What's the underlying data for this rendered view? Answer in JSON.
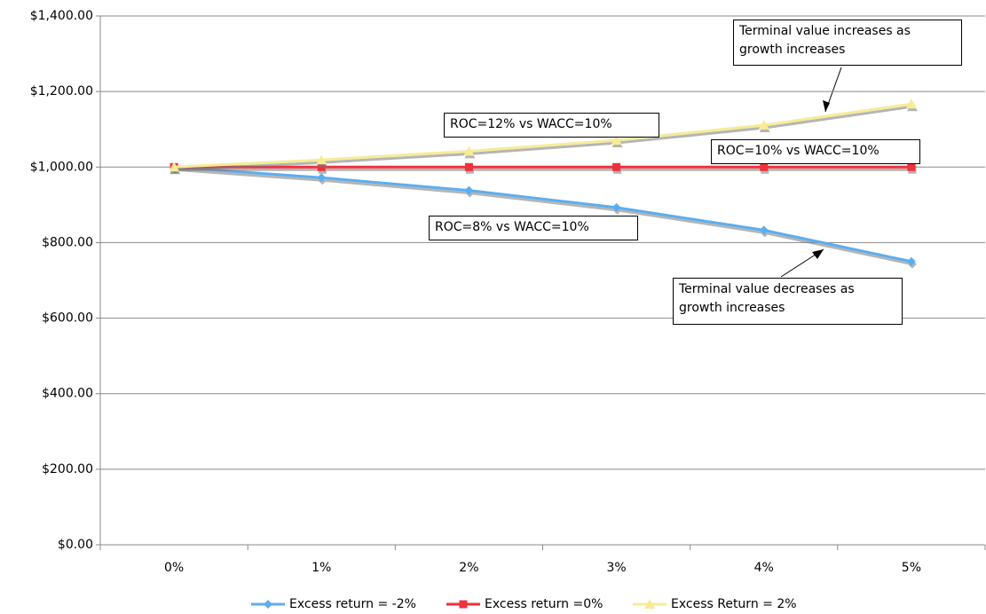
{
  "chart_data": {
    "type": "line",
    "categories": [
      "0%",
      "1%",
      "2%",
      "3%",
      "4%",
      "5%"
    ],
    "series": [
      {
        "name": "Excess return = -2%",
        "color": "#5aaef0",
        "marker": "diamond",
        "values": [
          1000,
          972,
          938,
          893,
          833,
          750
        ]
      },
      {
        "name": "Excess return =0%",
        "color": "#f0303c",
        "marker": "square",
        "values": [
          1000,
          1000,
          1000,
          1000,
          1000,
          1000
        ]
      },
      {
        "name": "Excess Return = 2%",
        "color": "#f6ec96",
        "marker": "triangle",
        "values": [
          1000,
          1019,
          1042,
          1071,
          1111,
          1167
        ]
      }
    ],
    "ylim": [
      0,
      1400
    ],
    "yticks": [
      {
        "value": 0,
        "label": "$0.00"
      },
      {
        "value": 200,
        "label": "$200.00"
      },
      {
        "value": 400,
        "label": "$400.00"
      },
      {
        "value": 600,
        "label": "$600.00"
      },
      {
        "value": 800,
        "label": "$800.00"
      },
      {
        "value": 1000,
        "label": "$1,000.00"
      },
      {
        "value": 1200,
        "label": "$1,200.00"
      },
      {
        "value": 1400,
        "label": "$1,400.00"
      }
    ],
    "grid": true,
    "legend": "bottom",
    "annotations": [
      "Terminal value increases as growth increases",
      "ROC=12% vs WACC=10%",
      "ROC=10% vs WACC=10%",
      "ROC=8% vs WACC=10%",
      "Terminal value decreases as growth increases"
    ]
  }
}
